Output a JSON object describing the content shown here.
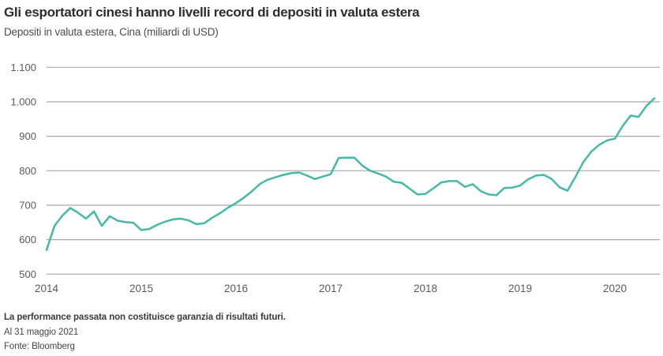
{
  "header": {
    "title": "Gli esportatori cinesi hanno livelli record di depositi in valuta estera",
    "subtitle": "Depositi in valuta estera, Cina (miliardi di USD)"
  },
  "footer": {
    "disclaimer": "La performance passata non costituisce garanzia di risultati futuri.",
    "as_of": "Al 31 maggio 2021",
    "source": "Fonte: Bloomberg"
  },
  "chart_data": {
    "type": "line",
    "title": "Gli esportatori cinesi hanno livelli record di depositi in valuta estera",
    "subtitle": "Depositi in valuta estera, Cina (miliardi di USD)",
    "xlabel": "",
    "ylabel": "miliardi di USD",
    "ylim": [
      500,
      1100
    ],
    "grid": "horizontal",
    "legend_position": "none",
    "colors": {
      "line": "#45b9a8",
      "gridline": "#a8a8a8",
      "tick_label": "#5a5a5a"
    },
    "y_ticks": [
      {
        "value": 500,
        "label": "500"
      },
      {
        "value": 600,
        "label": "600"
      },
      {
        "value": 700,
        "label": "700"
      },
      {
        "value": 800,
        "label": "800"
      },
      {
        "value": 900,
        "label": "900"
      },
      {
        "value": 1000,
        "label": "1.000"
      },
      {
        "value": 1100,
        "label": "1.100"
      }
    ],
    "x_ticks": [
      {
        "label": "2014",
        "month_index": 0
      },
      {
        "label": "2015",
        "month_index": 12
      },
      {
        "label": "2016",
        "month_index": 24
      },
      {
        "label": "2017",
        "month_index": 36
      },
      {
        "label": "2018",
        "month_index": 48
      },
      {
        "label": "2019",
        "month_index": 60
      },
      {
        "label": "2020",
        "month_index": 72
      }
    ],
    "x_start": "2014-01",
    "x_frequency": "monthly",
    "series": [
      {
        "name": "Depositi in valuta estera, Cina",
        "color": "#45b9a8",
        "values": [
          570,
          640,
          670,
          692,
          678,
          661,
          682,
          640,
          668,
          655,
          651,
          649,
          628,
          631,
          643,
          652,
          659,
          661,
          656,
          645,
          648,
          664,
          677,
          693,
          706,
          722,
          740,
          761,
          774,
          781,
          788,
          793,
          795,
          786,
          776,
          783,
          790,
          837,
          838,
          838,
          815,
          800,
          792,
          783,
          768,
          765,
          748,
          731,
          733,
          749,
          766,
          770,
          770,
          753,
          761,
          741,
          731,
          729,
          750,
          751,
          757,
          775,
          786,
          788,
          776,
          752,
          742,
          782,
          825,
          855,
          875,
          888,
          893,
          930,
          960,
          956,
          988,
          1010
        ]
      }
    ]
  }
}
